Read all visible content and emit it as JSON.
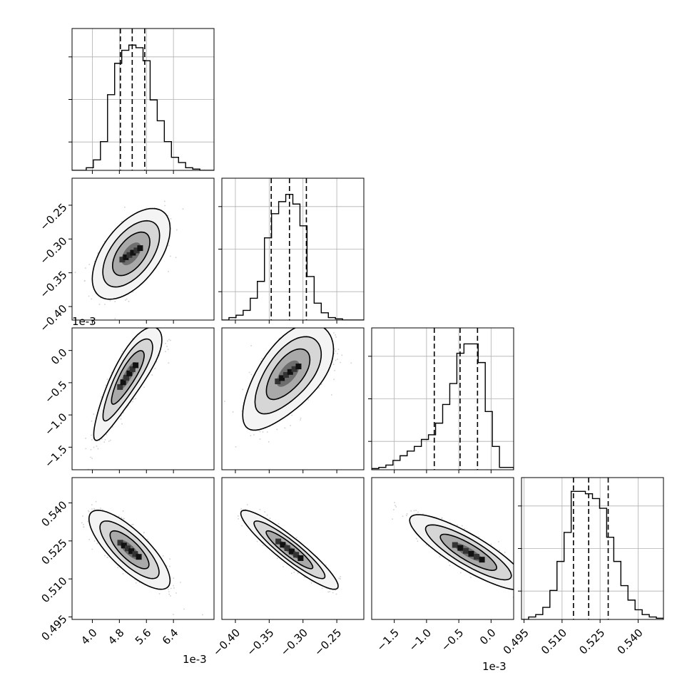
{
  "chart_data": {
    "type": "corner",
    "parameters": [
      {
        "range": [
          3.4,
          7.6
        ],
        "ticks": [
          4.0,
          4.8,
          5.6,
          6.4
        ],
        "tick_labels": [
          "4.0",
          "4.8",
          "5.6",
          "6.4"
        ],
        "offset_label": "1e-3",
        "quantiles": [
          4.83,
          5.18,
          5.55
        ],
        "hist_edges": [
          3.4,
          3.61,
          3.82,
          4.03,
          4.24,
          4.45,
          4.66,
          4.87,
          5.08,
          5.29,
          5.5,
          5.71,
          5.92,
          6.13,
          6.34,
          6.55,
          6.76,
          6.97,
          7.18,
          7.39,
          7.6
        ],
        "hist_counts": [
          0,
          0,
          1,
          4,
          11,
          29,
          41,
          46,
          48,
          47,
          42,
          27,
          19,
          11,
          5,
          3,
          1,
          0.5,
          0,
          0
        ],
        "hist_max": 50
      },
      {
        "range": [
          -0.42,
          -0.21
        ],
        "ticks": [
          -0.4,
          -0.35,
          -0.3,
          -0.25
        ],
        "tick_labels": [
          "−0.40",
          "−0.35",
          "−0.30",
          "−0.25"
        ],
        "offset_label": "",
        "quantiles": [
          -0.347,
          -0.32,
          -0.295
        ],
        "hist_edges": [
          -0.42,
          -0.4095,
          -0.399,
          -0.3885,
          -0.378,
          -0.3675,
          -0.357,
          -0.3465,
          -0.336,
          -0.3255,
          -0.315,
          -0.3045,
          -0.294,
          -0.2835,
          -0.273,
          -0.2625,
          -0.252,
          -0.2415,
          -0.231,
          -0.2205,
          -0.21
        ],
        "hist_counts": [
          0,
          1,
          2,
          4,
          9,
          16,
          34,
          44,
          49,
          52,
          48,
          39,
          18,
          7,
          3,
          1,
          0.5,
          0,
          0,
          0
        ],
        "hist_max": 54
      },
      {
        "range": [
          -1.85,
          0.35
        ],
        "ticks": [
          -1.5,
          -1.0,
          -0.5,
          0.0
        ],
        "tick_labels": [
          "−1.5",
          "−1.0",
          "−0.5",
          "0.0"
        ],
        "offset_label": "1e-3",
        "quantiles": [
          -0.88,
          -0.48,
          -0.21
        ],
        "hist_edges": [
          -1.85,
          -1.74,
          -1.63,
          -1.52,
          -1.41,
          -1.3,
          -1.19,
          -1.08,
          -0.97,
          -0.86,
          -0.75,
          -0.64,
          -0.53,
          -0.42,
          -0.31,
          -0.2,
          -0.09,
          0.02,
          0.13,
          0.24,
          0.35
        ],
        "hist_counts": [
          0.5,
          1,
          2,
          4,
          6,
          8,
          10,
          13,
          15,
          20,
          28,
          37,
          50,
          54,
          54,
          46,
          25,
          10,
          1,
          1
        ],
        "hist_max": 56
      },
      {
        "range": [
          0.494,
          0.55
        ],
        "ticks": [
          0.495,
          0.51,
          0.525,
          0.54
        ],
        "tick_labels": [
          "0.495",
          "0.510",
          "0.525",
          "0.540"
        ],
        "offset_label": "",
        "quantiles": [
          0.5145,
          0.5205,
          0.5282
        ],
        "hist_edges": [
          0.494,
          0.4968,
          0.4996,
          0.5024,
          0.5052,
          0.508,
          0.5108,
          0.5136,
          0.5164,
          0.5192,
          0.522,
          0.5248,
          0.5276,
          0.5304,
          0.5332,
          0.536,
          0.5388,
          0.5416,
          0.5444,
          0.5472,
          0.55
        ],
        "hist_counts": [
          0,
          1,
          2,
          5,
          12,
          24,
          36,
          53,
          53,
          52,
          50,
          46,
          34,
          24,
          14,
          8,
          4,
          2,
          1,
          0.5
        ],
        "hist_max": 54
      }
    ],
    "panels_2d": [
      {
        "x_param": 0,
        "y_param": 1,
        "center": [
          5.15,
          -0.322
        ],
        "sigma": [
          0.48,
          0.028
        ],
        "corr": 0.55
      },
      {
        "x_param": 0,
        "y_param": 2,
        "center": [
          5.05,
          -0.42
        ],
        "sigma": [
          0.42,
          0.36
        ],
        "corr": 0.85,
        "curve": 0.25
      },
      {
        "x_param": 1,
        "y_param": 2,
        "center": [
          -0.322,
          -0.38
        ],
        "sigma": [
          0.028,
          0.34
        ],
        "corr": 0.62,
        "curve": 0.2
      },
      {
        "x_param": 0,
        "y_param": 3,
        "center": [
          5.1,
          0.5215
        ],
        "sigma": [
          0.5,
          0.0065
        ],
        "corr": -0.78
      },
      {
        "x_param": 1,
        "y_param": 3,
        "center": [
          -0.32,
          0.5215
        ],
        "sigma": [
          0.03,
          0.0065
        ],
        "corr": -0.92
      },
      {
        "x_param": 2,
        "y_param": 3,
        "center": [
          -0.35,
          0.5205
        ],
        "sigma": [
          0.38,
          0.0062
        ],
        "corr": -0.85
      }
    ]
  }
}
